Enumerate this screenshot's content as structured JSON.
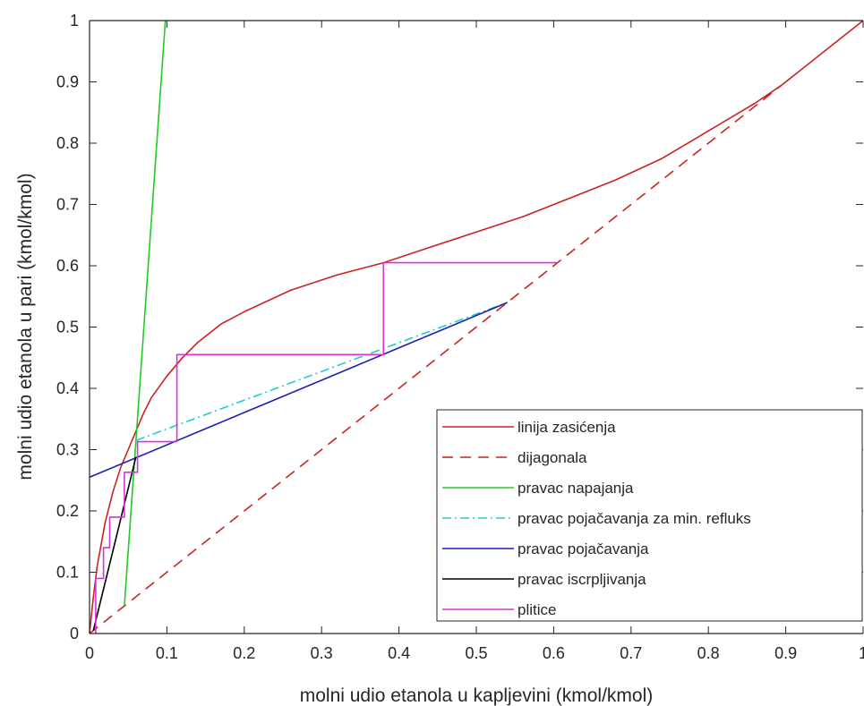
{
  "chart_data": {
    "type": "line",
    "xlabel": "molni udio etanola u kapljevini (kmol/kmol)",
    "ylabel": "molni udio etanola u pari (kmol/kmol)",
    "xlim": [
      0,
      1
    ],
    "ylim": [
      0,
      1
    ],
    "xticks": [
      "0",
      "0.1",
      "0.2",
      "0.3",
      "0.4",
      "0.5",
      "0.6",
      "0.7",
      "0.8",
      "0.9",
      "1"
    ],
    "yticks": [
      "0",
      "0.1",
      "0.2",
      "0.3",
      "0.4",
      "0.5",
      "0.6",
      "0.7",
      "0.8",
      "0.9",
      "1"
    ],
    "grid": false,
    "legend_position": "bottom-right",
    "series": [
      {
        "name": "linija zasićenja",
        "color": "#cc2222",
        "style": "solid",
        "x": [
          0,
          0.005,
          0.01,
          0.02,
          0.03,
          0.04,
          0.05,
          0.06,
          0.07,
          0.08,
          0.1,
          0.12,
          0.14,
          0.17,
          0.2,
          0.26,
          0.32,
          0.38,
          0.44,
          0.5,
          0.56,
          0.62,
          0.68,
          0.74,
          0.8,
          0.86,
          0.894,
          0.95,
          1.0
        ],
        "y": [
          0,
          0.06,
          0.11,
          0.18,
          0.23,
          0.27,
          0.3,
          0.33,
          0.36,
          0.385,
          0.42,
          0.45,
          0.475,
          0.505,
          0.525,
          0.56,
          0.585,
          0.605,
          0.63,
          0.655,
          0.68,
          0.71,
          0.74,
          0.775,
          0.82,
          0.865,
          0.894,
          0.95,
          1.0
        ]
      },
      {
        "name": "dijagonala",
        "color": "#cc2222",
        "style": "dashed",
        "x": [
          0,
          0.894
        ],
        "y": [
          0,
          0.894
        ]
      },
      {
        "name": "pravac napajanja",
        "color": "#22cc22",
        "style": "solid",
        "x": [
          0.045,
          0.098
        ],
        "y": [
          0.045,
          1.0
        ]
      },
      {
        "name": "pravac pojačavanja za min. refluks",
        "color": "#22cccc",
        "style": "dashdot",
        "x": [
          0.06,
          0.54
        ],
        "y": [
          0.315,
          0.54
        ]
      },
      {
        "name": "pravac pojačavanja",
        "color": "#1f1fb4",
        "style": "solid",
        "x": [
          0,
          0.54
        ],
        "y": [
          0.255,
          0.54
        ]
      },
      {
        "name": "pravac iscrpljivanja",
        "color": "#000000",
        "style": "solid",
        "x": [
          0.005,
          0.06
        ],
        "y": [
          0.005,
          0.288
        ]
      },
      {
        "name": "plitice",
        "color": "#d633d6",
        "style": "solid",
        "x": [
          0.605,
          0.38,
          0.38,
          0.113,
          0.113,
          0.062,
          0.062,
          0.045,
          0.045,
          0.026,
          0.026,
          0.018,
          0.018,
          0.008,
          0.008
        ],
        "y": [
          0.605,
          0.605,
          0.455,
          0.455,
          0.313,
          0.313,
          0.263,
          0.263,
          0.19,
          0.19,
          0.14,
          0.14,
          0.09,
          0.09,
          0.0
        ]
      }
    ]
  }
}
